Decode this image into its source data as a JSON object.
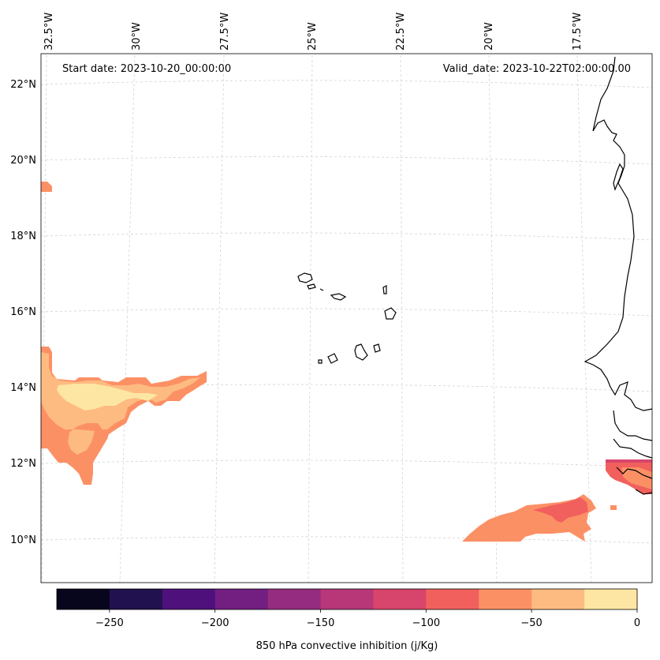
{
  "header": {
    "start_date": "Start date: 2023-10-20_00:00:00",
    "valid_date": "Valid_date: 2023-10-22T02:00:00.00"
  },
  "map": {
    "lon_labels": [
      "32.5°W",
      "30°W",
      "27.5°W",
      "25°W",
      "22.5°W",
      "20°W",
      "17.5°W"
    ],
    "lat_labels": [
      "22°N",
      "20°N",
      "18°N",
      "16°N",
      "14°N",
      "12°N",
      "10°N"
    ],
    "coastline_color": "#000000",
    "gridline_color": "#cccccc"
  },
  "colorbar": {
    "label": "850 hPa convective inhibition (j/Kg)",
    "tick_labels": [
      "−250",
      "−200",
      "−150",
      "−100",
      "−50",
      "0"
    ],
    "colors": [
      "#07061c",
      "#21114e",
      "#4e117b",
      "#721f81",
      "#952c80",
      "#b73779",
      "#d8456c",
      "#f1605d",
      "#fc9065",
      "#febb81",
      "#fde6a3"
    ]
  }
}
